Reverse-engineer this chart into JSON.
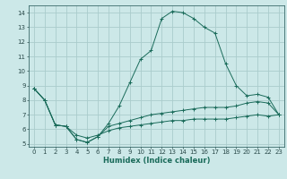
{
  "xlabel": "Humidex (Indice chaleur)",
  "bg_color": "#cce8e8",
  "grid_color": "#aacccc",
  "line_color": "#1a6b5a",
  "xlim": [
    -0.5,
    23.5
  ],
  "ylim": [
    4.8,
    14.5
  ],
  "xticks": [
    0,
    1,
    2,
    3,
    4,
    5,
    6,
    7,
    8,
    9,
    10,
    11,
    12,
    13,
    14,
    15,
    16,
    17,
    18,
    19,
    20,
    21,
    22,
    23
  ],
  "yticks": [
    5,
    6,
    7,
    8,
    9,
    10,
    11,
    12,
    13,
    14
  ],
  "curve1_x": [
    0,
    1,
    2,
    3,
    4,
    5,
    6,
    7,
    8,
    9,
    10,
    11,
    12,
    13,
    14,
    15,
    16,
    17,
    18,
    19,
    20,
    21,
    22,
    23
  ],
  "curve1_y": [
    8.8,
    8.0,
    6.3,
    6.2,
    5.3,
    5.1,
    5.5,
    6.4,
    7.6,
    9.2,
    10.8,
    11.4,
    13.6,
    14.1,
    14.0,
    13.6,
    13.0,
    12.6,
    10.5,
    9.0,
    8.3,
    8.4,
    8.2,
    7.0
  ],
  "curve2_x": [
    0,
    1,
    2,
    3,
    4,
    5,
    6,
    7,
    8,
    9,
    10,
    11,
    12,
    13,
    14,
    15,
    16,
    17,
    18,
    19,
    20,
    21,
    22,
    23
  ],
  "curve2_y": [
    8.8,
    8.0,
    6.3,
    6.2,
    5.3,
    5.1,
    5.5,
    6.2,
    6.4,
    6.6,
    6.8,
    7.0,
    7.1,
    7.2,
    7.3,
    7.4,
    7.5,
    7.5,
    7.5,
    7.6,
    7.8,
    7.9,
    7.8,
    7.0
  ],
  "curve3_x": [
    0,
    1,
    2,
    3,
    4,
    5,
    6,
    7,
    8,
    9,
    10,
    11,
    12,
    13,
    14,
    15,
    16,
    17,
    18,
    19,
    20,
    21,
    22,
    23
  ],
  "curve3_y": [
    8.8,
    8.0,
    6.3,
    6.2,
    5.6,
    5.4,
    5.6,
    5.9,
    6.1,
    6.2,
    6.3,
    6.4,
    6.5,
    6.6,
    6.6,
    6.7,
    6.7,
    6.7,
    6.7,
    6.8,
    6.9,
    7.0,
    6.9,
    7.0
  ],
  "xlabel_fontsize": 6.0,
  "tick_fontsize": 5.0
}
